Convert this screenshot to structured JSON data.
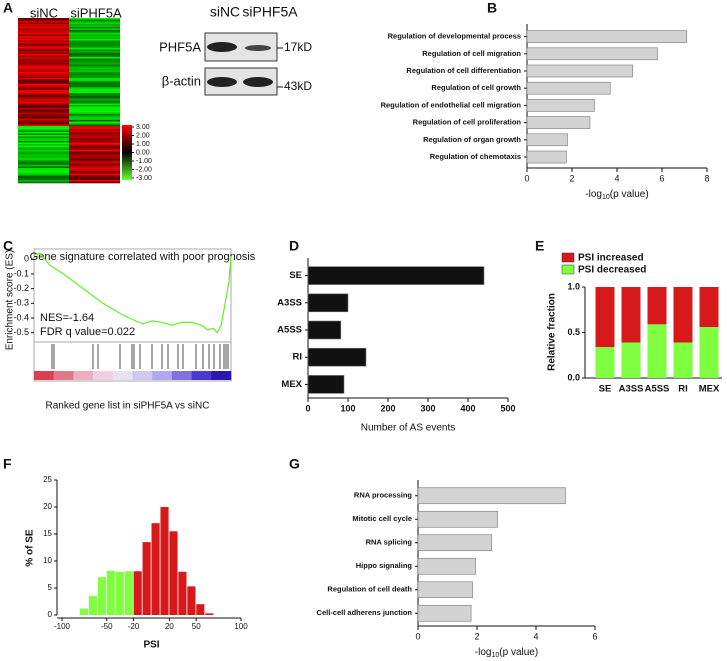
{
  "panel_labels": [
    "A",
    "B",
    "C",
    "D",
    "E",
    "F",
    "G"
  ],
  "heatmap": {
    "column_labels": [
      "siNC",
      "siPHF5A"
    ],
    "colorbar_ticks": [
      {
        "value": 3,
        "label": "3.00"
      },
      {
        "value": 2,
        "label": "2.00"
      },
      {
        "value": 1,
        "label": "1.00"
      },
      {
        "value": 0,
        "label": "0.00"
      },
      {
        "value": -1,
        "label": "-1.00"
      },
      {
        "value": -2,
        "label": "-2.00"
      },
      {
        "value": -3,
        "label": "-3.00"
      }
    ]
  },
  "western_blot": {
    "column_labels": [
      "siNC",
      "siPHF5A"
    ],
    "rows": [
      {
        "protein": "PHF5A",
        "size": "17kD"
      },
      {
        "protein": "β-actin",
        "size": "43kD"
      }
    ]
  },
  "chart_data": [
    {
      "type": "hbar",
      "categories": [
        "Regulation of developmental process",
        "Regulation of cell migration",
        "Regulation of cell differentiation",
        "Regulation of cell growth",
        "Regulation of endothelial cell migration",
        "Regulation of cell proliferation",
        "Regulation of organ growth",
        "Regulation of chemotaxis"
      ],
      "values": [
        7.1,
        5.8,
        4.7,
        3.7,
        3.0,
        2.8,
        1.8,
        1.75
      ],
      "color": "#d3d3d3",
      "xlim": [
        0,
        8
      ],
      "xticks": [
        0,
        2,
        4,
        6,
        8
      ],
      "xlabel": {
        "prefix": "-log",
        "sub": "10",
        "suffix": "(p value)"
      }
    },
    {
      "type": "line",
      "title": "Gene signature  correlated with poor prognosis",
      "ylabel": "Enrichment score (ES)",
      "xlabel": "Ranked gene list in siPHF5A vs siNC",
      "annotations": [
        "NES=-1.64",
        "FDR q value=0.022"
      ],
      "x": [
        0,
        3,
        8,
        15,
        20,
        25,
        30,
        35,
        40,
        45,
        50,
        55,
        60,
        65,
        70,
        75,
        80,
        85,
        88,
        91,
        93,
        95,
        97,
        99,
        100
      ],
      "values": [
        0.03,
        0.04,
        -0.04,
        -0.1,
        -0.15,
        -0.2,
        -0.25,
        -0.3,
        -0.34,
        -0.38,
        -0.41,
        -0.44,
        -0.42,
        -0.43,
        -0.45,
        -0.43,
        -0.43,
        -0.45,
        -0.48,
        -0.47,
        -0.5,
        -0.45,
        -0.3,
        -0.15,
        0.02
      ],
      "color": "#66ee22",
      "xlim": [
        0,
        100
      ],
      "ylim": [
        -0.55,
        0.07
      ],
      "yticks": [
        0,
        -0.1,
        -0.2,
        -0.3,
        -0.4,
        -0.5
      ]
    },
    {
      "type": "hbar",
      "categories": [
        "SE",
        "A3SS",
        "A5SS",
        "RI",
        "MEX"
      ],
      "values": [
        440,
        100,
        82,
        145,
        90
      ],
      "color": "#111111",
      "xlim": [
        0,
        500
      ],
      "xticks": [
        0,
        100,
        200,
        300,
        400,
        500
      ],
      "xlabel": "Number of AS events"
    },
    {
      "type": "stacked",
      "categories": [
        "SE",
        "A3SS",
        "A5SS",
        "RI",
        "MEX"
      ],
      "ylabel": "Relative fraction",
      "series": [
        {
          "name": "PSI increased",
          "color": "#d7191c",
          "values": [
            0.66,
            0.61,
            0.41,
            0.61,
            0.44
          ]
        },
        {
          "name": "PSI decreased",
          "color": "#7fff3f",
          "values": [
            0.34,
            0.39,
            0.59,
            0.39,
            0.56
          ]
        }
      ],
      "ylim": [
        0,
        1
      ],
      "yticks": [
        {
          "value": 0,
          "label": "0.0"
        },
        {
          "value": 0.5,
          "label": "0.5"
        },
        {
          "value": 1,
          "label": "1.0"
        }
      ],
      "legend": "top"
    },
    {
      "type": "histogram",
      "xlabel": "PSI",
      "ylabel": "% of SE",
      "bins": [
        -80,
        -70,
        -60,
        -50,
        -40,
        -30,
        -20,
        -10,
        0,
        10,
        20,
        30,
        40,
        50,
        60,
        70
      ],
      "counts": [
        1.2,
        3.5,
        7,
        8.2,
        8,
        8.1,
        8.1,
        13.5,
        17,
        20,
        15.5,
        8,
        5.3,
        2,
        0.3
      ],
      "colors": [
        "#7fff3f",
        "#7fff3f",
        "#7fff3f",
        "#7fff3f",
        "#7fff3f",
        "#7fff3f",
        "#d7191c",
        "#d7191c",
        "#d7191c",
        "#d7191c",
        "#d7191c",
        "#d7191c",
        "#d7191c",
        "#d7191c",
        "#d7191c"
      ],
      "xlim": [
        -100,
        100
      ],
      "xticks": [
        -100,
        -50,
        -20,
        20,
        50,
        100
      ],
      "ylim": [
        0,
        25
      ],
      "yticks": [
        0,
        5,
        10,
        15,
        20,
        25
      ]
    },
    {
      "type": "hbar",
      "categories": [
        "RNA processing",
        "Mitotic cell cycle",
        "RNA splicing",
        "Hippo signaling",
        "Regulation of cell death",
        "Cell-cell adherens junction"
      ],
      "values": [
        5.0,
        2.7,
        2.5,
        1.95,
        1.85,
        1.8
      ],
      "color": "#d3d3d3",
      "xlim": [
        0,
        6
      ],
      "xticks": [
        0,
        2,
        4,
        6
      ],
      "xlabel": {
        "prefix": "-log",
        "sub": "10",
        "suffix": "(p value)"
      }
    }
  ]
}
